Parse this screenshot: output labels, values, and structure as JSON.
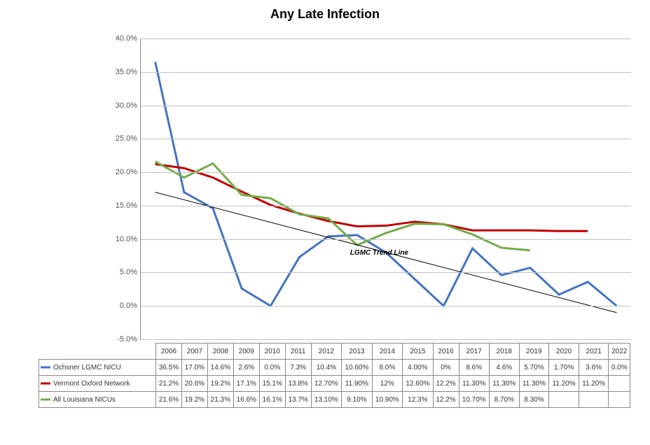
{
  "title": "Any Late Infection",
  "chart": {
    "type": "line",
    "ylim": [
      -5,
      40
    ],
    "ytick_step": 5,
    "yticks": [
      -5,
      0,
      5,
      10,
      15,
      20,
      25,
      30,
      35,
      40
    ],
    "ytick_labels": [
      "-5.0%",
      "0.0%",
      "5.0%",
      "10.0%",
      "15.0%",
      "20.0%",
      "25.0%",
      "30.0%",
      "35.0%",
      "40.0%"
    ],
    "years": [
      "2006",
      "2007",
      "2008",
      "2009",
      "2010",
      "2011",
      "2012",
      "2013",
      "2014",
      "2015",
      "2016",
      "2017",
      "2018",
      "2019",
      "2020",
      "2021",
      "2022"
    ],
    "grid_color": "#c0c0c0",
    "background_color": "#ffffff",
    "line_width": 3,
    "title_fontsize": 18,
    "label_fontsize": 11,
    "table_fontsize": 10
  },
  "series": [
    {
      "name": "Ochsner LGMC NICU",
      "color": "#4472c4",
      "values": [
        36.5,
        17.0,
        14.6,
        2.6,
        0.0,
        7.3,
        10.4,
        10.6,
        8.0,
        4.0,
        0.0,
        8.6,
        4.6,
        5.7,
        1.7,
        3.6,
        0.0
      ],
      "display": [
        "36.5%",
        "17.0%",
        "14.6%",
        "2.6%",
        "0.0%",
        "7.3%",
        "10.4%",
        "10.60%",
        "8.0%",
        "4.00%",
        "0%",
        "8.6%",
        "4.6%",
        "5.70%",
        "1.70%",
        "3.6%",
        "0.0%"
      ]
    },
    {
      "name": "Vermont Oxford Network",
      "color": "#c00000",
      "values": [
        21.2,
        20.6,
        19.2,
        17.1,
        15.1,
        13.8,
        12.7,
        11.9,
        12.0,
        12.6,
        12.2,
        11.3,
        11.3,
        11.3,
        11.2,
        11.2,
        null
      ],
      "display": [
        "21.2%",
        "20.6%",
        "19.2%",
        "17.1%",
        "15.1%",
        "13.8%",
        "12.70%",
        "11.90%",
        "12%",
        "12.60%",
        "12.2%",
        "11.30%",
        "11.30%",
        "11.30%",
        "11.20%",
        "11.20%",
        ""
      ]
    },
    {
      "name": "All Louisiana NICUs",
      "color": "#70ad47",
      "values": [
        21.6,
        19.2,
        21.3,
        16.6,
        16.1,
        13.7,
        13.1,
        9.1,
        10.9,
        12.3,
        12.2,
        10.7,
        8.7,
        8.3,
        null,
        null,
        null
      ],
      "display": [
        "21.6%",
        "19.2%",
        "21.3%",
        "16.6%",
        "16.1%",
        "13.7%",
        "13.10%",
        "9.10%",
        "10.90%",
        "12.3%",
        "12.2%",
        "10.70%",
        "8.70%",
        "8.30%",
        "",
        "",
        ""
      ]
    }
  ],
  "trend": {
    "label": "LGMC Trend Line",
    "start_year_index": 0,
    "end_year_index": 16,
    "start_value": 17.0,
    "end_value": -1.0,
    "color": "#000000"
  }
}
